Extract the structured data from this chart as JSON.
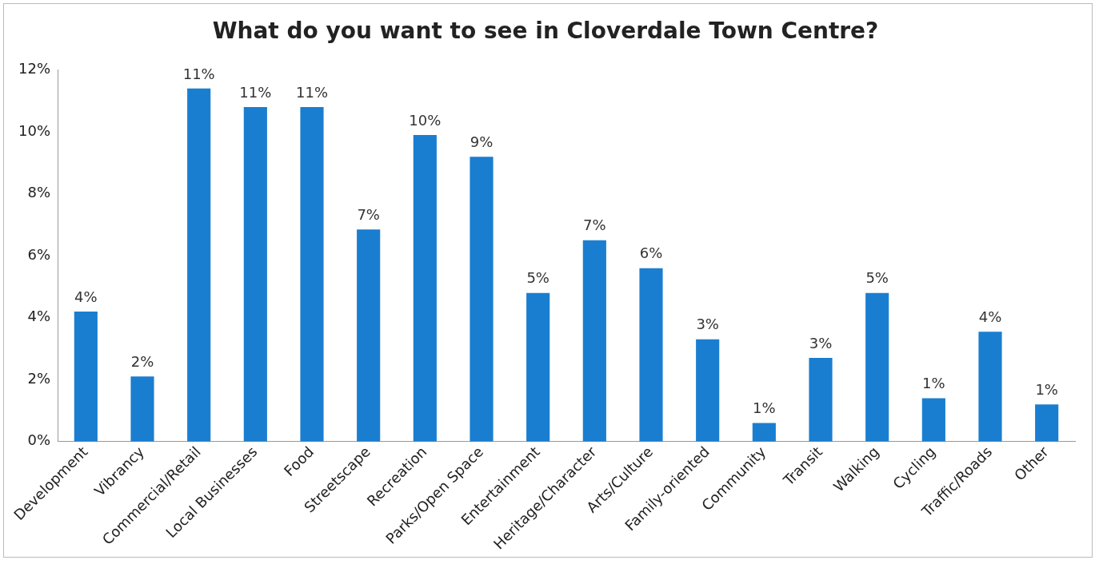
{
  "chart_data": {
    "type": "bar",
    "title": "What do you want to see in Cloverdale Town Centre?",
    "categories": [
      "Development",
      "Vibrancy",
      "Commercial/Retail",
      "Local Businesses",
      "Food",
      "Streetscape",
      "Recreation",
      "Parks/Open Space",
      "Entertainment",
      "Heritage/Character",
      "Arts/Culture",
      "Family-oriented",
      "Community",
      "Transit",
      "Walking",
      "Cycling",
      "Traffic/Roads",
      "Other"
    ],
    "values": [
      4.2,
      2.1,
      11.4,
      10.8,
      10.8,
      6.85,
      9.9,
      9.2,
      4.8,
      6.5,
      5.6,
      3.3,
      0.6,
      2.7,
      4.8,
      1.4,
      3.55,
      1.2
    ],
    "value_labels": [
      "4%",
      "2%",
      "11%",
      "11%",
      "11%",
      "7%",
      "10%",
      "9%",
      "5%",
      "7%",
      "6%",
      "3%",
      "1%",
      "3%",
      "5%",
      "1%",
      "4%",
      "1%"
    ],
    "color": "#1a7ed0",
    "ylim": [
      0,
      12
    ],
    "yticks": [
      {
        "value": 0,
        "label": "0%"
      },
      {
        "value": 2,
        "label": "2%"
      },
      {
        "value": 4,
        "label": "4%"
      },
      {
        "value": 6,
        "label": "6%"
      },
      {
        "value": 8,
        "label": "8%"
      },
      {
        "value": 10,
        "label": "10%"
      },
      {
        "value": 12,
        "label": "12%"
      }
    ],
    "grid": false,
    "legend": false
  }
}
